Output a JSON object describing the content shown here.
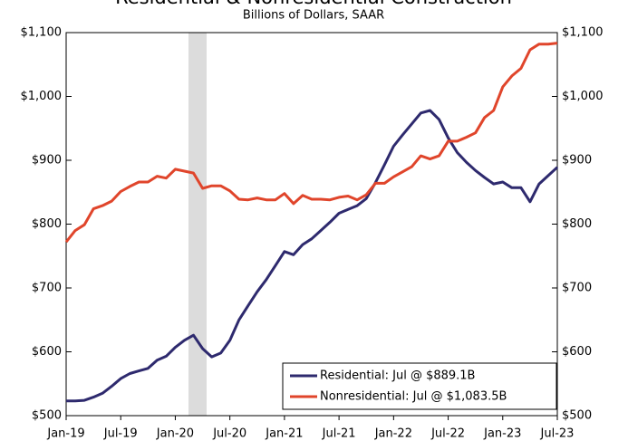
{
  "chart_data": {
    "type": "line",
    "title": "Residential & Nonresidential Construction",
    "subtitle": "Billions of Dollars, SAAR",
    "categories": [
      "Jan-19",
      null,
      null,
      null,
      null,
      null,
      "Jul-19",
      null,
      null,
      null,
      null,
      null,
      "Jan-20",
      null,
      null,
      null,
      null,
      null,
      "Jul-20",
      null,
      null,
      null,
      null,
      null,
      "Jan-21",
      null,
      null,
      null,
      null,
      null,
      "Jul-21",
      null,
      null,
      null,
      null,
      null,
      "Jan-22",
      null,
      null,
      null,
      null,
      null,
      "Jul-22",
      null,
      null,
      null,
      null,
      null,
      "Jan-23",
      null,
      null,
      null,
      null,
      null,
      "Jul-23"
    ],
    "series": [
      {
        "name": "Residential: Jul @ $889.1B",
        "color": "#2e2a6e",
        "values": [
          523,
          523,
          524,
          529,
          535,
          546,
          558,
          566,
          570,
          574,
          587,
          593,
          607,
          618,
          626,
          605,
          592,
          598,
          618,
          650,
          672,
          694,
          713,
          735,
          757,
          752,
          768,
          777,
          790,
          803,
          817,
          823,
          829,
          840,
          865,
          893,
          922,
          940,
          957,
          974,
          978,
          964,
          935,
          912,
          897,
          884,
          873,
          863,
          866,
          857,
          857,
          835,
          863,
          876,
          889.1
        ]
      },
      {
        "name": "Nonresidential: Jul @ $1,083.5B",
        "color": "#e0452b",
        "values": [
          772,
          790,
          799,
          824,
          829,
          836,
          851,
          859,
          866,
          866,
          875,
          872,
          886,
          883,
          880,
          856,
          860,
          860,
          852,
          839,
          838,
          841,
          838,
          838,
          848,
          832,
          845,
          839,
          839,
          838,
          842,
          844,
          838,
          846,
          864,
          864,
          874,
          882,
          890,
          907,
          902,
          907,
          930,
          930,
          936,
          943,
          967,
          978,
          1015,
          1032,
          1044,
          1073,
          1082,
          1082,
          1083.5
        ]
      }
    ],
    "ylim": [
      500,
      1100
    ],
    "yticks": [
      {
        "value": 500,
        "label": "$500"
      },
      {
        "value": 600,
        "label": "$600"
      },
      {
        "value": 700,
        "label": "$700"
      },
      {
        "value": 800,
        "label": "$800"
      },
      {
        "value": 900,
        "label": "$900"
      },
      {
        "value": 1000,
        "label": "$1,000"
      },
      {
        "value": 1100,
        "label": "$1,100"
      }
    ],
    "y2lim": [
      500,
      1100
    ],
    "y2ticks": [
      {
        "value": 500,
        "label": "$500"
      },
      {
        "value": 600,
        "label": "$600"
      },
      {
        "value": 700,
        "label": "$700"
      },
      {
        "value": 800,
        "label": "$800"
      },
      {
        "value": 900,
        "label": "$900"
      },
      {
        "value": 1000,
        "label": "$1,000"
      },
      {
        "value": 1100,
        "label": "$1,100"
      }
    ],
    "legend": "lower right"
  }
}
